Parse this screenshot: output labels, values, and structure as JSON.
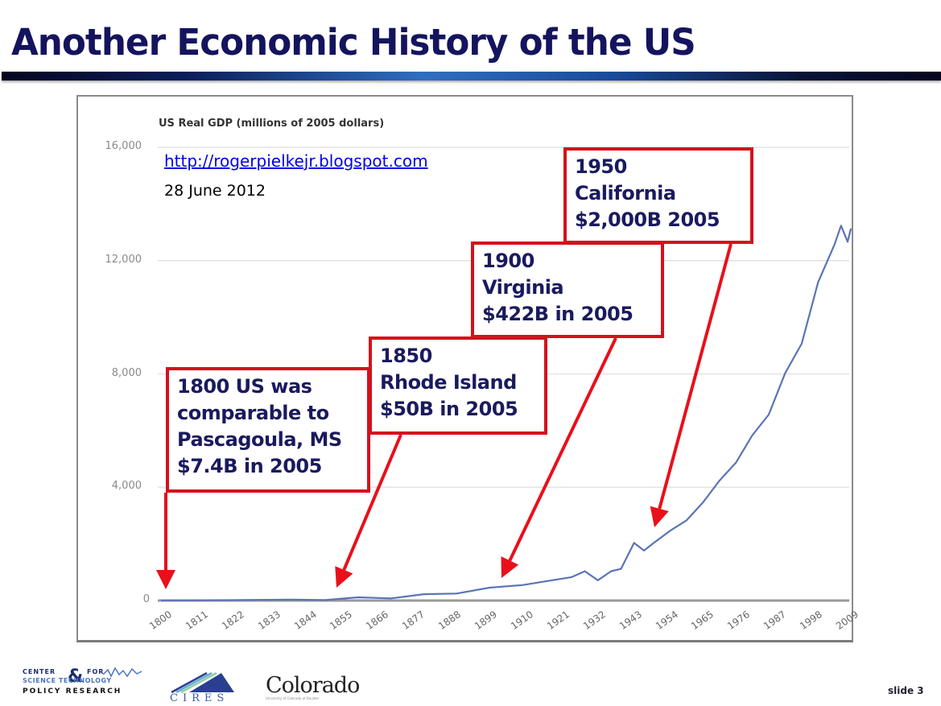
{
  "slide": {
    "title": "Another Economic History of the US",
    "number_label": "slide 3",
    "blog_url": "http://rogerpielkejr.blogspot.com",
    "blog_date": "28 June 2012"
  },
  "colors": {
    "title": "#14145e",
    "line": "#5a74b5",
    "callout_border": "#d4111d",
    "callout_text": "#1a1a5e",
    "arrow": "#e8101a",
    "grid": "#e3e3e3",
    "link": "#0000e6"
  },
  "callouts": [
    {
      "lines": [
        "1800 US was",
        "comparable to",
        "Pascagoula, MS",
        "$7.4B in 2005"
      ],
      "target_year": 1800
    },
    {
      "lines": [
        "1850",
        "Rhode Island",
        "$50B in 2005"
      ],
      "target_year": 1855
    },
    {
      "lines": [
        "1900",
        "Virginia",
        "$422B in 2005"
      ],
      "target_year": 1905
    },
    {
      "lines": [
        "1950",
        "California",
        "$2,000B 2005"
      ],
      "target_year": 1950
    }
  ],
  "footer": {
    "logo_cstpr": {
      "line1": "CENTER",
      "amp": "&",
      "for": "FOR",
      "line2": "SCIENCE  TECHNOLOGY",
      "line3": "POLICY RESEARCH"
    },
    "logo_cires": "CIRES",
    "logo_colorado": "Colorado",
    "logo_colorado_sub": "University of Colorado at Boulder"
  },
  "chart_data": {
    "type": "line",
    "title": "US Real GDP (millions of 2005 dollars)",
    "xlabel": "",
    "ylabel": "",
    "ylim": [
      0,
      16000
    ],
    "xlim": [
      1800,
      2010
    ],
    "grid": true,
    "legend": "none",
    "y_ticks": [
      "0",
      "4,000",
      "8,000",
      "12,000",
      "16,000"
    ],
    "x_ticks": [
      "1800",
      "1811",
      "1822",
      "1833",
      "1844",
      "1855",
      "1866",
      "1877",
      "1888",
      "1899",
      "1910",
      "1921",
      "1932",
      "1943",
      "1954",
      "1965",
      "1976",
      "1987",
      "1998",
      "2009"
    ],
    "series": [
      {
        "name": "US Real GDP",
        "x": [
          1800,
          1820,
          1840,
          1850,
          1860,
          1870,
          1880,
          1890,
          1900,
          1910,
          1920,
          1925,
          1929,
          1933,
          1937,
          1940,
          1944,
          1947,
          1950,
          1955,
          1960,
          1965,
          1970,
          1975,
          1980,
          1985,
          1990,
          1995,
          2000,
          2005,
          2007,
          2009,
          2010
        ],
        "values": [
          7,
          15,
          30,
          50,
          80,
          110,
          190,
          280,
          420,
          580,
          700,
          860,
          1000,
          750,
          1000,
          1150,
          2000,
          1800,
          2000,
          2500,
          2800,
          3500,
          4200,
          4900,
          5800,
          6600,
          8000,
          9100,
          11200,
          12600,
          13200,
          12700,
          13100
        ]
      }
    ],
    "annotations": [
      "1800 US was comparable to Pascagoula, MS $7.4B in 2005",
      "1850 Rhode Island $50B in 2005",
      "1900 Virginia $422B in 2005",
      "1950 California $2,000B 2005"
    ]
  }
}
